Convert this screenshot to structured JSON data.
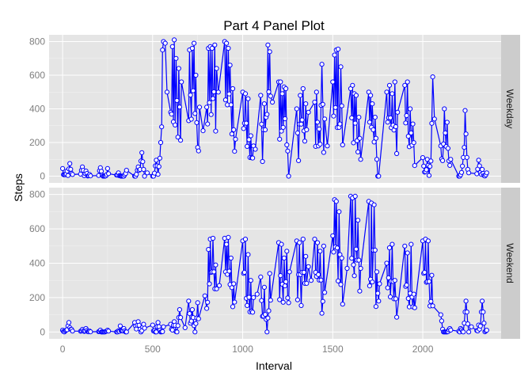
{
  "chart_data": {
    "type": "line",
    "title": "Part 4 Panel Plot",
    "xlabel": "Interval",
    "ylabel": "Steps",
    "xlim": [
      -75,
      2435
    ],
    "xticks": [
      0,
      500,
      1000,
      1500,
      2000
    ],
    "yticks": [
      0,
      200,
      400,
      600,
      800
    ],
    "grid": true,
    "legend": "none",
    "colors": {
      "line": "#0000ff",
      "marker_fill": "#ffffff",
      "marker_stroke": "#0000ff",
      "panel_bg": "#e5e5e5",
      "grid_major": "#ffffff",
      "strip_bg": "#cccccc",
      "tick_text": "#7f7f7f"
    },
    "panels": [
      {
        "label": "Weekday",
        "ylim": [
          -40,
          840
        ],
        "peaks": [
          [
            0,
            45
          ],
          [
            25,
            30
          ],
          [
            40,
            75
          ],
          [
            55,
            10
          ],
          [
            110,
            55
          ],
          [
            130,
            30
          ],
          [
            150,
            10
          ],
          [
            210,
            50
          ],
          [
            250,
            45
          ],
          [
            310,
            20
          ],
          [
            355,
            35
          ],
          [
            420,
            55
          ],
          [
            440,
            140
          ],
          [
            470,
            20
          ],
          [
            520,
            95
          ],
          [
            545,
            200
          ],
          [
            555,
            750
          ],
          [
            560,
            800
          ],
          [
            570,
            790
          ],
          [
            580,
            500
          ],
          [
            600,
            380
          ],
          [
            610,
            770
          ],
          [
            620,
            810
          ],
          [
            630,
            700
          ],
          [
            645,
            640
          ],
          [
            660,
            560
          ],
          [
            700,
            330
          ],
          [
            705,
            750
          ],
          [
            720,
            760
          ],
          [
            730,
            790
          ],
          [
            740,
            600
          ],
          [
            760,
            410
          ],
          [
            780,
            270
          ],
          [
            800,
            410
          ],
          [
            810,
            760
          ],
          [
            820,
            770
          ],
          [
            830,
            760
          ],
          [
            845,
            780
          ],
          [
            855,
            640
          ],
          [
            865,
            500
          ],
          [
            900,
            800
          ],
          [
            910,
            790
          ],
          [
            920,
            760
          ],
          [
            930,
            660
          ],
          [
            945,
            520
          ],
          [
            960,
            220
          ],
          [
            1000,
            500
          ],
          [
            1015,
            490
          ],
          [
            1030,
            460
          ],
          [
            1045,
            240
          ],
          [
            1060,
            180
          ],
          [
            1070,
            160
          ],
          [
            1100,
            480
          ],
          [
            1120,
            430
          ],
          [
            1130,
            350
          ],
          [
            1140,
            780
          ],
          [
            1150,
            740
          ],
          [
            1165,
            440
          ],
          [
            1200,
            560
          ],
          [
            1210,
            560
          ],
          [
            1220,
            490
          ],
          [
            1230,
            530
          ],
          [
            1240,
            520
          ],
          [
            1300,
            400
          ],
          [
            1320,
            480
          ],
          [
            1335,
            520
          ],
          [
            1350,
            430
          ],
          [
            1365,
            380
          ],
          [
            1400,
            440
          ],
          [
            1410,
            500
          ],
          [
            1425,
            280
          ],
          [
            1440,
            665
          ],
          [
            1455,
            340
          ],
          [
            1470,
            180
          ],
          [
            1500,
            560
          ],
          [
            1510,
            720
          ],
          [
            1520,
            750
          ],
          [
            1530,
            755
          ],
          [
            1545,
            650
          ],
          [
            1600,
            520
          ],
          [
            1610,
            540
          ],
          [
            1620,
            490
          ],
          [
            1630,
            480
          ],
          [
            1645,
            350
          ],
          [
            1700,
            500
          ],
          [
            1710,
            480
          ],
          [
            1720,
            430
          ],
          [
            1735,
            350
          ],
          [
            1800,
            500
          ],
          [
            1815,
            540
          ],
          [
            1830,
            490
          ],
          [
            1845,
            560
          ],
          [
            1860,
            380
          ],
          [
            1900,
            540
          ],
          [
            1915,
            560
          ],
          [
            1930,
            400
          ],
          [
            1945,
            310
          ],
          [
            2000,
            110
          ],
          [
            2025,
            100
          ],
          [
            2045,
            90
          ],
          [
            2055,
            590
          ],
          [
            2065,
            340
          ],
          [
            2100,
            180
          ],
          [
            2120,
            400
          ],
          [
            2135,
            320
          ],
          [
            2155,
            100
          ],
          [
            2220,
            60
          ],
          [
            2235,
            390
          ],
          [
            2250,
            40
          ],
          [
            2310,
            95
          ],
          [
            2330,
            40
          ],
          [
            2355,
            20
          ]
        ]
      },
      {
        "label": "Weekend",
        "ylim": [
          -40,
          840
        ],
        "peaks": [
          [
            0,
            10
          ],
          [
            20,
            10
          ],
          [
            35,
            55
          ],
          [
            50,
            15
          ],
          [
            110,
            15
          ],
          [
            130,
            20
          ],
          [
            150,
            5
          ],
          [
            210,
            10
          ],
          [
            250,
            10
          ],
          [
            320,
            35
          ],
          [
            340,
            20
          ],
          [
            400,
            55
          ],
          [
            420,
            60
          ],
          [
            450,
            45
          ],
          [
            500,
            40
          ],
          [
            530,
            55
          ],
          [
            560,
            30
          ],
          [
            600,
            45
          ],
          [
            620,
            60
          ],
          [
            650,
            130
          ],
          [
            680,
            25
          ],
          [
            700,
            180
          ],
          [
            720,
            130
          ],
          [
            750,
            170
          ],
          [
            790,
            210
          ],
          [
            810,
            480
          ],
          [
            820,
            540
          ],
          [
            835,
            545
          ],
          [
            850,
            390
          ],
          [
            870,
            270
          ],
          [
            900,
            545
          ],
          [
            910,
            510
          ],
          [
            920,
            550
          ],
          [
            935,
            430
          ],
          [
            950,
            280
          ],
          [
            1000,
            530
          ],
          [
            1015,
            540
          ],
          [
            1030,
            450
          ],
          [
            1045,
            300
          ],
          [
            1060,
            200
          ],
          [
            1080,
            220
          ],
          [
            1100,
            320
          ],
          [
            1120,
            260
          ],
          [
            1150,
            340
          ],
          [
            1200,
            520
          ],
          [
            1215,
            510
          ],
          [
            1230,
            430
          ],
          [
            1245,
            470
          ],
          [
            1260,
            350
          ],
          [
            1300,
            530
          ],
          [
            1315,
            520
          ],
          [
            1335,
            540
          ],
          [
            1350,
            440
          ],
          [
            1365,
            380
          ],
          [
            1380,
            300
          ],
          [
            1400,
            540
          ],
          [
            1415,
            520
          ],
          [
            1430,
            470
          ],
          [
            1450,
            500
          ],
          [
            1500,
            560
          ],
          [
            1510,
            770
          ],
          [
            1520,
            760
          ],
          [
            1535,
            700
          ],
          [
            1550,
            430
          ],
          [
            1580,
            370
          ],
          [
            1600,
            790
          ],
          [
            1610,
            780
          ],
          [
            1625,
            790
          ],
          [
            1640,
            650
          ],
          [
            1655,
            370
          ],
          [
            1700,
            760
          ],
          [
            1715,
            750
          ],
          [
            1730,
            740
          ],
          [
            1745,
            350
          ],
          [
            1760,
            280
          ],
          [
            1800,
            400
          ],
          [
            1815,
            490
          ],
          [
            1830,
            510
          ],
          [
            1845,
            300
          ],
          [
            1900,
            500
          ],
          [
            1915,
            460
          ],
          [
            1935,
            510
          ],
          [
            1950,
            220
          ],
          [
            2000,
            530
          ],
          [
            2015,
            540
          ],
          [
            2030,
            530
          ],
          [
            2050,
            330
          ],
          [
            2100,
            100
          ],
          [
            2150,
            20
          ],
          [
            2210,
            20
          ],
          [
            2240,
            180
          ],
          [
            2270,
            30
          ],
          [
            2310,
            40
          ],
          [
            2330,
            180
          ],
          [
            2355,
            10
          ]
        ]
      }
    ]
  }
}
